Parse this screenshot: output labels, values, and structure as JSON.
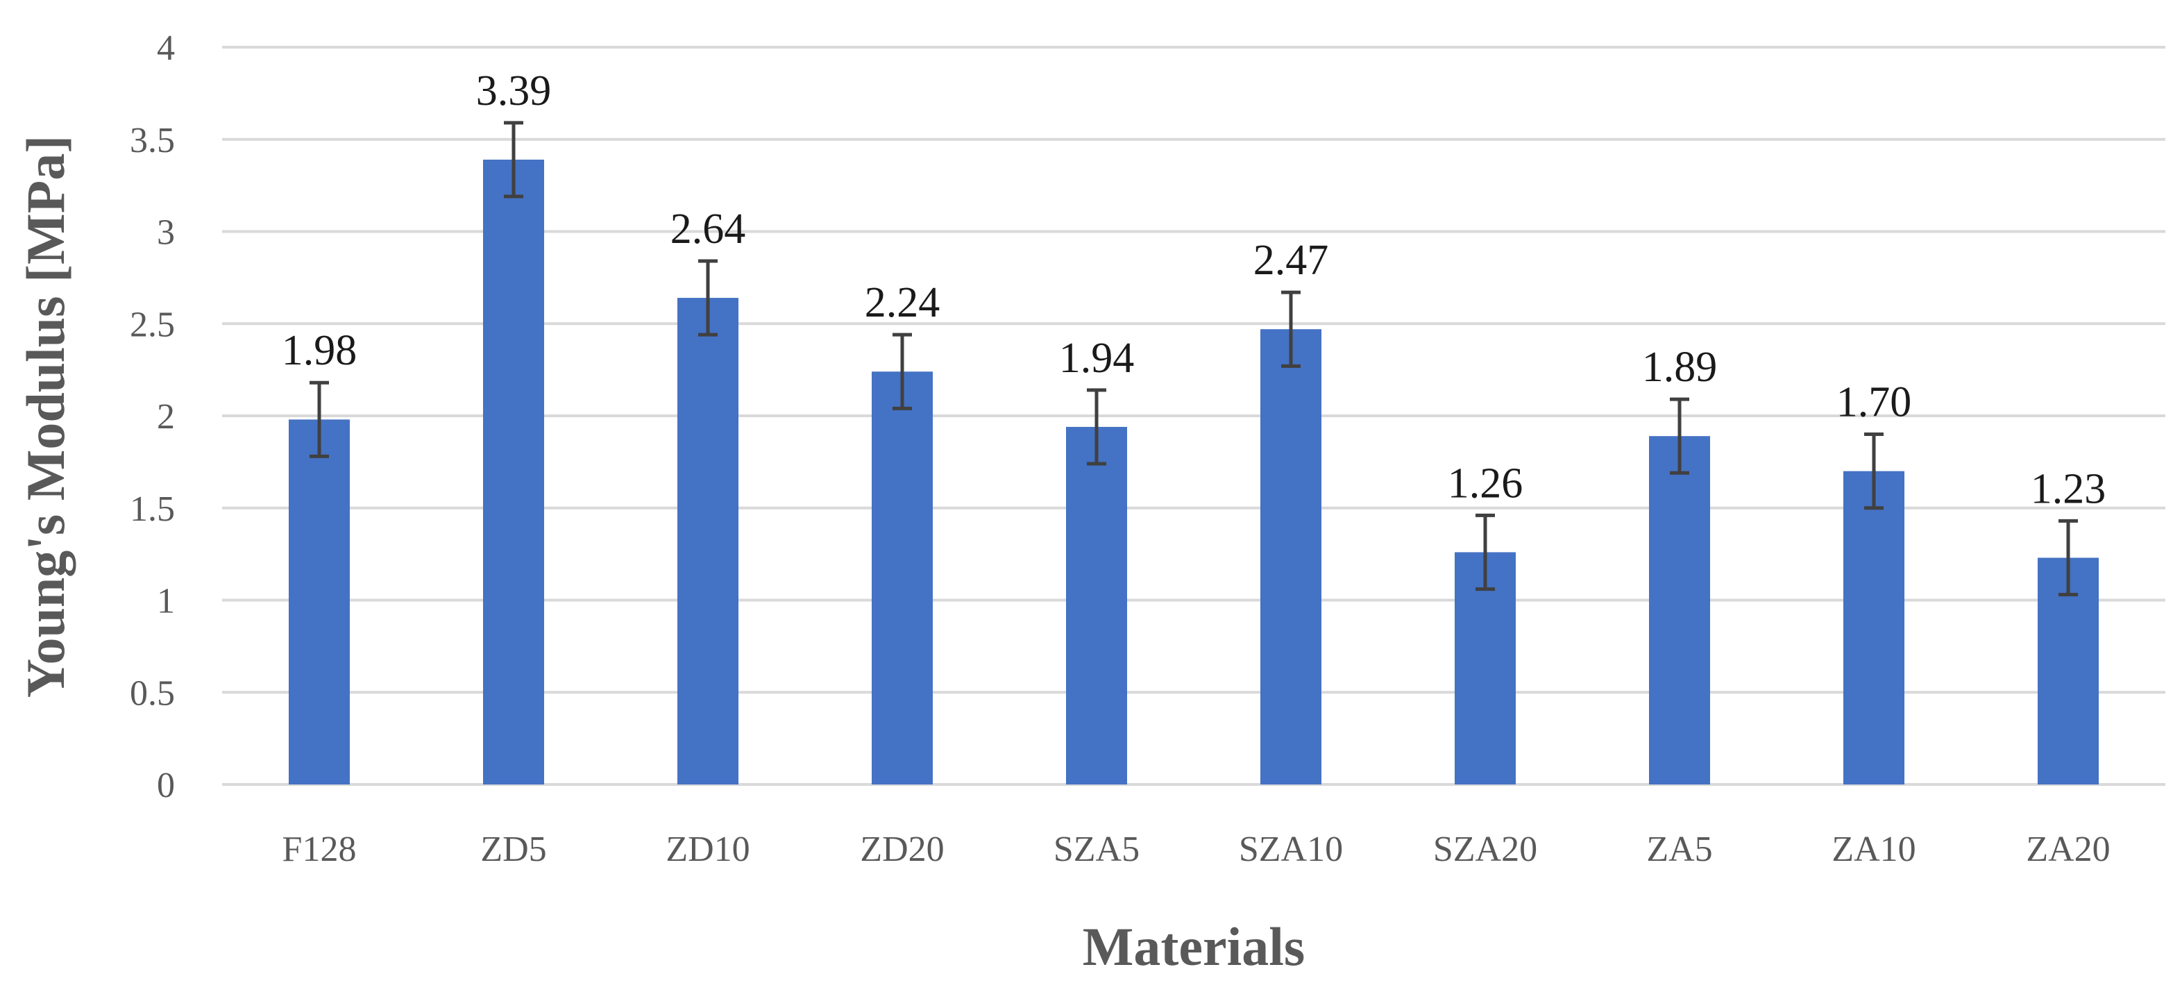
{
  "chart_data": {
    "type": "bar",
    "title": "",
    "xlabel": "Materials",
    "ylabel": "Young's Modulus [MPa]",
    "ylim": [
      0,
      4
    ],
    "yticks": [
      "0",
      "0.5",
      "1",
      "1.5",
      "2",
      "2.5",
      "3",
      "3.5",
      "4"
    ],
    "grid": true,
    "legend": "none",
    "bar_color": "#4472C4",
    "categories": [
      "F128",
      "ZD5",
      "ZD10",
      "ZD20",
      "SZA5",
      "SZA10",
      "SZA20",
      "ZA5",
      "ZA10",
      "ZA20"
    ],
    "values": [
      1.98,
      3.39,
      2.64,
      2.24,
      1.94,
      2.47,
      1.26,
      1.89,
      1.7,
      1.23
    ],
    "data_labels": [
      "1.98",
      "3.39",
      "2.64",
      "2.24",
      "1.94",
      "2.47",
      "1.26",
      "1.89",
      "1.70",
      "1.23"
    ],
    "errors": [
      0.2,
      0.2,
      0.2,
      0.2,
      0.2,
      0.2,
      0.2,
      0.2,
      0.2,
      0.2
    ]
  }
}
